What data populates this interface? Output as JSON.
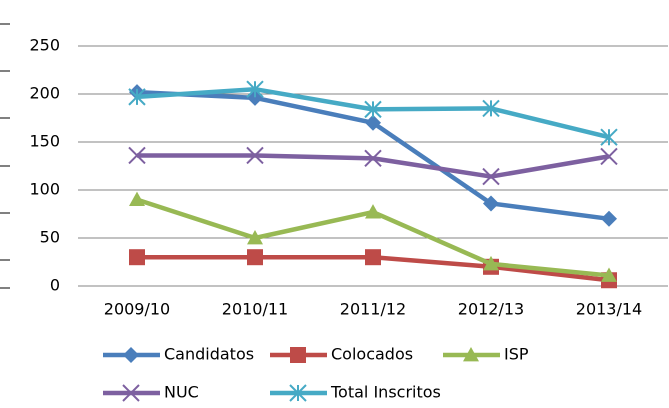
{
  "chart_data": {
    "type": "line",
    "categories": [
      "2009/10",
      "2010/11",
      "2011/12",
      "2012/13",
      "2013/14"
    ],
    "series": [
      {
        "name": "Candidatos",
        "color": "#4a7ebb",
        "marker": "diamond",
        "values": [
          202,
          196,
          170,
          86,
          70
        ]
      },
      {
        "name": "Colocados",
        "color": "#be4b48",
        "marker": "square",
        "values": [
          30,
          30,
          30,
          20,
          6
        ]
      },
      {
        "name": "ISP",
        "color": "#98b954",
        "marker": "triangle",
        "values": [
          90,
          50,
          77,
          23,
          11
        ]
      },
      {
        "name": "NUC",
        "color": "#7d60a0",
        "marker": "x",
        "values": [
          136,
          136,
          133,
          114,
          135
        ]
      },
      {
        "name": "Total Inscritos",
        "color": "#46aac5",
        "marker": "asterisk",
        "values": [
          197,
          205,
          184,
          185,
          155
        ]
      }
    ],
    "ylim": [
      0,
      250
    ],
    "yticks": [
      0,
      50,
      100,
      150,
      200,
      250
    ],
    "grid": true,
    "legend": "bottom"
  }
}
